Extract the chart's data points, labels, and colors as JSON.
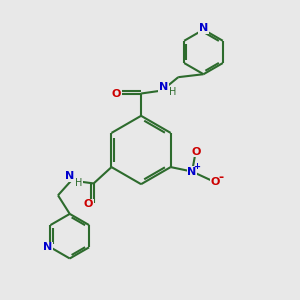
{
  "bg_color": "#e8e8e8",
  "bond_color": "#2d6b2d",
  "N_color": "#0000cd",
  "O_color": "#cc0000",
  "lw": 1.5,
  "lw_thick": 1.5,
  "fig_size": [
    3.0,
    3.0
  ],
  "dpi": 100,
  "xlim": [
    0,
    10
  ],
  "ylim": [
    0,
    10
  ]
}
